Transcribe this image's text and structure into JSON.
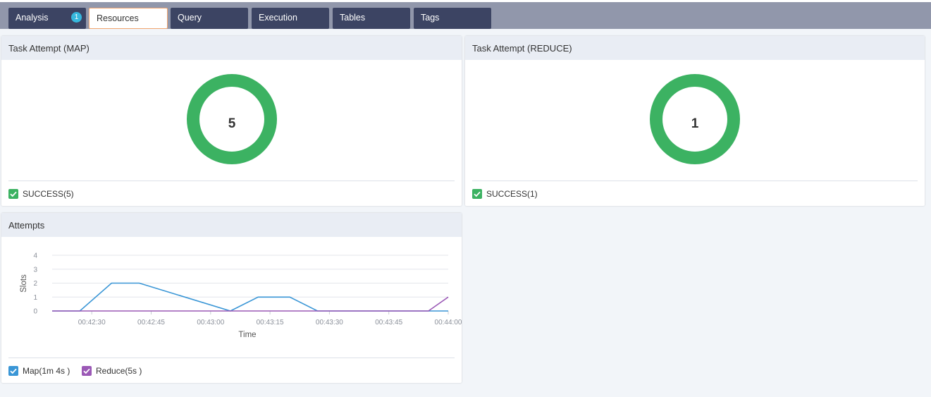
{
  "tabs": [
    {
      "label": "Analysis",
      "badge": "1"
    },
    {
      "label": "Resources"
    },
    {
      "label": "Query"
    },
    {
      "label": "Execution"
    },
    {
      "label": "Tables"
    },
    {
      "label": "Tags"
    }
  ],
  "active_tab": "Resources",
  "map_panel": {
    "title": "Task Attempt (MAP)",
    "count": "5",
    "legend": "SUCCESS(5)"
  },
  "reduce_panel": {
    "title": "Task Attempt (REDUCE)",
    "count": "1",
    "legend": "SUCCESS(1)"
  },
  "attempts_panel": {
    "title": "Attempts",
    "legend": [
      {
        "label": "Map(1m 4s )",
        "color": "#3a96d6"
      },
      {
        "label": "Reduce(5s )",
        "color": "#9b59b6"
      }
    ]
  },
  "colors": {
    "success": "#3cb262",
    "map": "#3a96d6",
    "reduce": "#9b59b6",
    "tab_bg": "#3c4463",
    "tabbar_bg": "#9197ab"
  },
  "chart_data": {
    "type": "line",
    "xlabel": "Time",
    "ylabel": "Slots",
    "ylim": [
      0,
      4
    ],
    "y_ticks": [
      "0",
      "1",
      "2",
      "3",
      "4"
    ],
    "x_ticks": [
      "00:42:30",
      "00:42:45",
      "00:43:00",
      "00:43:15",
      "00:43:30",
      "00:43:45",
      "00:44:00"
    ],
    "grid": true,
    "series": [
      {
        "name": "Map(1m 4s )",
        "points": [
          [
            "00:42:20",
            0
          ],
          [
            "00:42:27",
            0
          ],
          [
            "00:42:35",
            2
          ],
          [
            "00:42:42",
            2
          ],
          [
            "00:43:05",
            0
          ],
          [
            "00:43:12",
            1
          ],
          [
            "00:43:20",
            1
          ],
          [
            "00:43:27",
            0
          ],
          [
            "00:44:00",
            0
          ]
        ]
      },
      {
        "name": "Reduce(5s )",
        "points": [
          [
            "00:42:20",
            0
          ],
          [
            "00:43:55",
            0
          ],
          [
            "00:44:00",
            1
          ]
        ]
      }
    ]
  }
}
